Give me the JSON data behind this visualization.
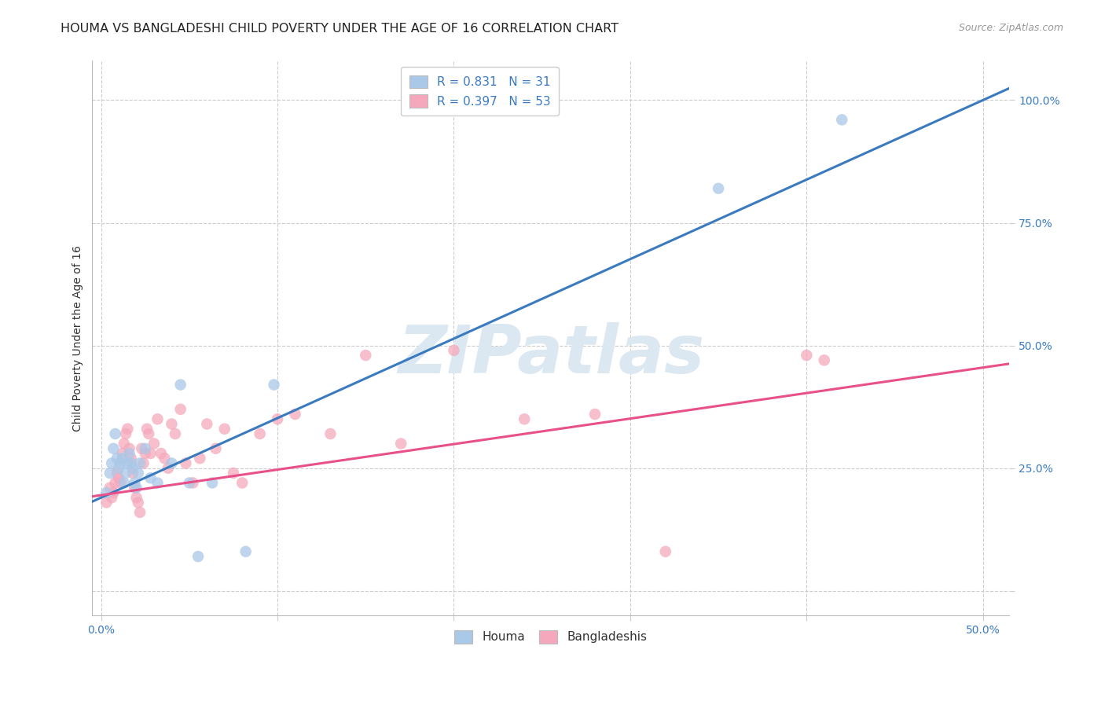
{
  "title": "HOUMA VS BANGLADESHI CHILD POVERTY UNDER THE AGE OF 16 CORRELATION CHART",
  "source": "Source: ZipAtlas.com",
  "ylabel": "Child Poverty Under the Age of 16",
  "xlim": [
    -0.005,
    0.515
  ],
  "ylim": [
    -0.05,
    1.08
  ],
  "x_ticks": [
    0.0,
    0.1,
    0.2,
    0.3,
    0.4,
    0.5
  ],
  "x_tick_labels": [
    "0.0%",
    "",
    "",
    "",
    "",
    "50.0%"
  ],
  "y_ticks": [
    0.0,
    0.25,
    0.5,
    0.75,
    1.0
  ],
  "y_tick_labels": [
    "",
    "25.0%",
    "50.0%",
    "75.0%",
    "100.0%"
  ],
  "houma_R": "0.831",
  "houma_N": "31",
  "bangladeshi_R": "0.397",
  "bangladeshi_N": "53",
  "houma_color": "#aac8e8",
  "bangladeshi_color": "#f5a8bc",
  "houma_line_color": "#3a7abf",
  "bangladeshi_line_color": "#e8508a",
  "watermark_text": "ZIPatlas",
  "watermark_color": "#dbe8f2",
  "legend_label_houma": "Houma",
  "legend_label_bangladeshi": "Bangladeshis",
  "title_fontsize": 11.5,
  "source_fontsize": 9,
  "tick_fontsize": 10,
  "legend_fontsize": 11,
  "ylabel_fontsize": 10,
  "houma_x": [
    0.003,
    0.005,
    0.006,
    0.007,
    0.008,
    0.009,
    0.01,
    0.011,
    0.012,
    0.013,
    0.014,
    0.015,
    0.016,
    0.017,
    0.018,
    0.019,
    0.02,
    0.021,
    0.022,
    0.025,
    0.028,
    0.032,
    0.04,
    0.045,
    0.05,
    0.055,
    0.063,
    0.082,
    0.098,
    0.35,
    0.42
  ],
  "houma_y": [
    0.2,
    0.24,
    0.26,
    0.29,
    0.32,
    0.27,
    0.25,
    0.26,
    0.27,
    0.22,
    0.24,
    0.26,
    0.28,
    0.26,
    0.25,
    0.22,
    0.21,
    0.24,
    0.26,
    0.29,
    0.23,
    0.22,
    0.26,
    0.42,
    0.22,
    0.07,
    0.22,
    0.08,
    0.42,
    0.82,
    0.96
  ],
  "bangladeshi_x": [
    0.003,
    0.005,
    0.006,
    0.007,
    0.008,
    0.009,
    0.01,
    0.011,
    0.012,
    0.013,
    0.014,
    0.015,
    0.016,
    0.017,
    0.018,
    0.019,
    0.02,
    0.021,
    0.022,
    0.023,
    0.024,
    0.025,
    0.026,
    0.027,
    0.028,
    0.03,
    0.032,
    0.034,
    0.036,
    0.038,
    0.04,
    0.042,
    0.045,
    0.048,
    0.052,
    0.056,
    0.06,
    0.065,
    0.07,
    0.075,
    0.08,
    0.09,
    0.1,
    0.11,
    0.13,
    0.15,
    0.17,
    0.2,
    0.24,
    0.28,
    0.32,
    0.4,
    0.41
  ],
  "bangladeshi_y": [
    0.18,
    0.21,
    0.19,
    0.2,
    0.22,
    0.24,
    0.23,
    0.22,
    0.28,
    0.3,
    0.32,
    0.33,
    0.29,
    0.27,
    0.24,
    0.21,
    0.19,
    0.18,
    0.16,
    0.29,
    0.26,
    0.28,
    0.33,
    0.32,
    0.28,
    0.3,
    0.35,
    0.28,
    0.27,
    0.25,
    0.34,
    0.32,
    0.37,
    0.26,
    0.22,
    0.27,
    0.34,
    0.29,
    0.33,
    0.24,
    0.22,
    0.32,
    0.35,
    0.36,
    0.32,
    0.48,
    0.3,
    0.49,
    0.35,
    0.36,
    0.08,
    0.48,
    0.47
  ]
}
